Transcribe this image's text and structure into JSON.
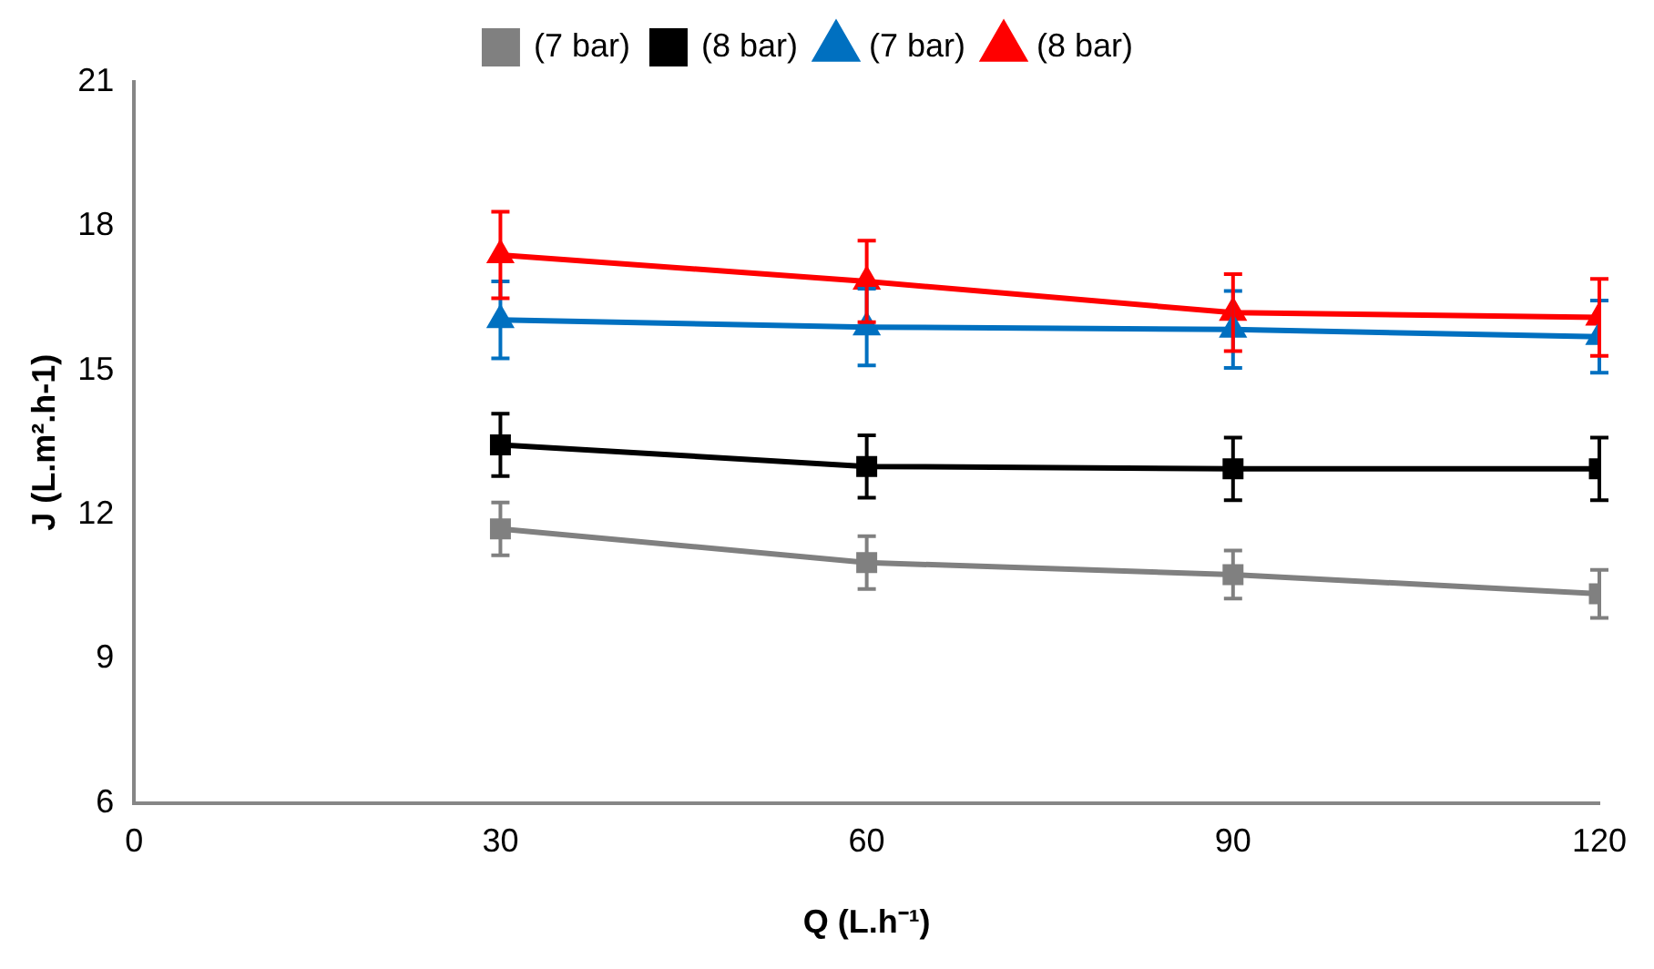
{
  "chart_data": {
    "type": "line",
    "xlabel": "Q (L.h⁻¹)",
    "ylabel": "J (L.m².h-1)",
    "x": [
      30,
      60,
      90,
      120
    ],
    "xlim": [
      0,
      120
    ],
    "xticks": [
      0,
      30,
      60,
      90,
      120
    ],
    "ylim": [
      6,
      21
    ],
    "yticks": [
      6,
      9,
      12,
      15,
      18,
      21
    ],
    "grid": false,
    "legend": "top",
    "series": [
      {
        "name": "(7 bar)",
        "color": "#808080",
        "marker": "square",
        "values": [
          11.7,
          11.0,
          10.75,
          10.35
        ],
        "errors": [
          0.55,
          0.55,
          0.5,
          0.5
        ]
      },
      {
        "name": "(8 bar)",
        "color": "#000000",
        "marker": "square",
        "values": [
          13.45,
          13.0,
          12.95,
          12.95
        ],
        "errors": [
          0.65,
          0.65,
          0.65,
          0.65
        ]
      },
      {
        "name": "(7 bar)",
        "color": "#0070c0",
        "marker": "triangle",
        "values": [
          16.05,
          15.9,
          15.85,
          15.7
        ],
        "errors": [
          0.8,
          0.8,
          0.8,
          0.75
        ]
      },
      {
        "name": "(8 bar)",
        "color": "#ff0000",
        "marker": "triangle",
        "values": [
          17.4,
          16.85,
          16.2,
          16.1
        ],
        "errors": [
          0.9,
          0.85,
          0.8,
          0.8
        ]
      }
    ]
  }
}
